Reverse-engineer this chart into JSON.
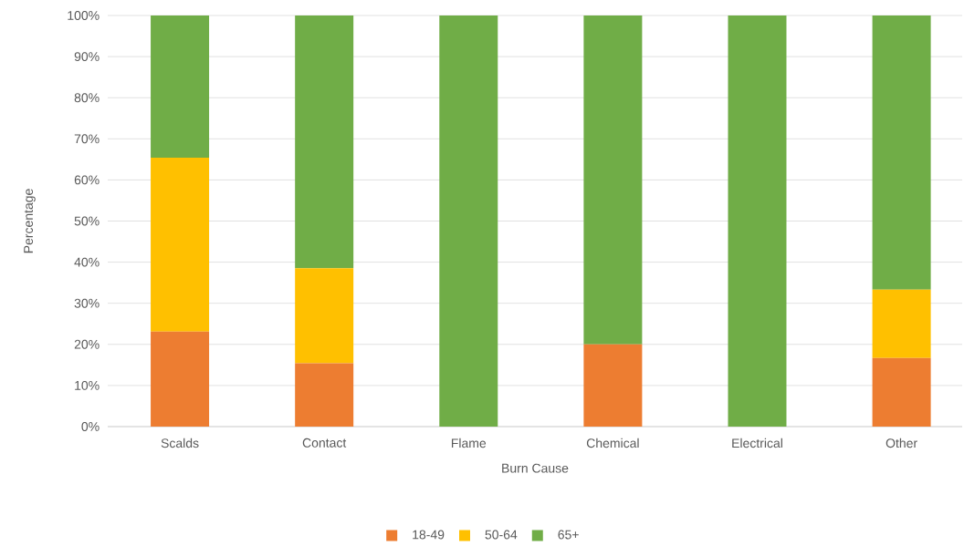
{
  "chart_data": {
    "type": "bar",
    "stacked": true,
    "xlabel": "Burn Cause",
    "ylabel": "Percentage",
    "categories": [
      "Scalds",
      "Contact",
      "Flame",
      "Chemical",
      "Electrical",
      "Other"
    ],
    "series": [
      {
        "name": "18-49",
        "color": "#ed7d31",
        "values": [
          23.1,
          15.4,
          0,
          20,
          0,
          16.7
        ]
      },
      {
        "name": "50-64",
        "color": "#ffc000",
        "values": [
          42.3,
          23.1,
          0,
          0,
          0,
          16.6
        ]
      },
      {
        "name": "65+",
        "color": "#70ad47",
        "values": [
          34.6,
          61.5,
          100,
          80,
          100,
          66.7
        ]
      }
    ],
    "ylim": [
      0,
      100
    ],
    "yticks": [
      {
        "value": 0,
        "label": "0%"
      },
      {
        "value": 10,
        "label": "10%"
      },
      {
        "value": 20,
        "label": "20%"
      },
      {
        "value": 30,
        "label": "30%"
      },
      {
        "value": 40,
        "label": "40%"
      },
      {
        "value": 50,
        "label": "50%"
      },
      {
        "value": 60,
        "label": "60%"
      },
      {
        "value": 70,
        "label": "70%"
      },
      {
        "value": 80,
        "label": "80%"
      },
      {
        "value": 90,
        "label": "90%"
      },
      {
        "value": 100,
        "label": "100%"
      }
    ],
    "grid": "y",
    "legend": "bottom"
  }
}
